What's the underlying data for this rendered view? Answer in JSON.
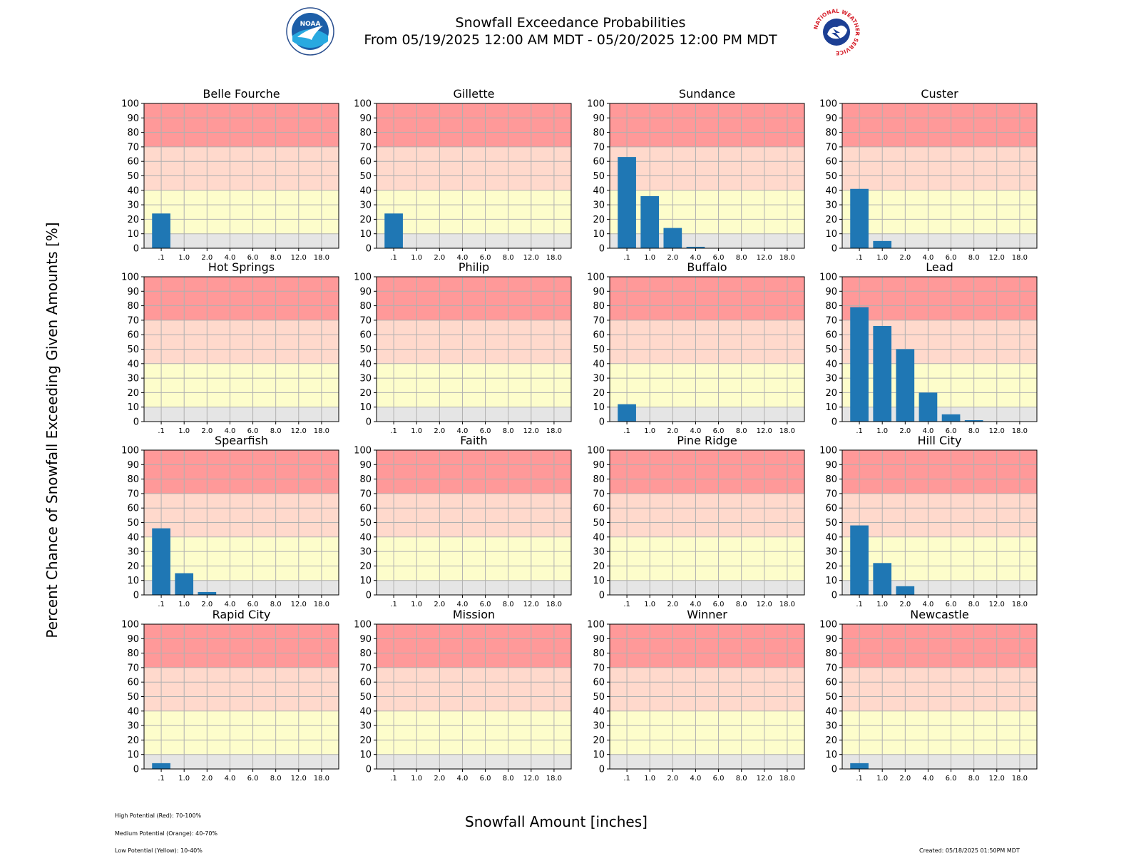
{
  "header": {
    "title_line1": "Snowfall Exceedance Probabilities",
    "title_line2": "From 05/19/2025 12:00 AM MDT - 05/20/2025 12:00 PM MDT"
  },
  "logos": {
    "left": "noaa-logo",
    "right": "nws-logo",
    "noaa_text": "NOAA",
    "nws_text": "NATIONAL WEATHER SERVICE"
  },
  "axes": {
    "ylabel": "Percent Chance of Snowfall Exceeding Given Amounts [%]",
    "xlabel": "Snowfall Amount [inches]"
  },
  "legend": {
    "high": "High Potential (Red): 70-100%",
    "medium": "Medium Potential (Orange): 40-70%",
    "low": "Low Potential (Yellow): 10-40%"
  },
  "footer": {
    "created": "Created: 05/18/2025 01:50PM MDT"
  },
  "colors": {
    "bar": "#1f77b4",
    "high": "#ff9999",
    "medium": "#ffd9cc",
    "low": "#fdfdcb",
    "none": "#e5e5e5",
    "grid": "#b0b0b0"
  },
  "chart_data": {
    "type": "bar",
    "layout": "4x4 small multiples",
    "grid": true,
    "ylim": [
      0,
      100
    ],
    "yticks": [
      0,
      10,
      20,
      30,
      40,
      50,
      60,
      70,
      80,
      90,
      100
    ],
    "categories": [
      ".1",
      "1.0",
      "2.0",
      "4.0",
      "6.0",
      "8.0",
      "12.0",
      "18.0"
    ],
    "bands": [
      {
        "from": 0,
        "to": 10,
        "color": "#e5e5e5"
      },
      {
        "from": 10,
        "to": 40,
        "color": "#fdfdcb"
      },
      {
        "from": 40,
        "to": 70,
        "color": "#ffd9cc"
      },
      {
        "from": 70,
        "to": 100,
        "color": "#ff9999"
      }
    ],
    "panels": [
      {
        "title": "Belle Fourche",
        "values": [
          24,
          0,
          0,
          0,
          0,
          0,
          0,
          0
        ]
      },
      {
        "title": "Gillette",
        "values": [
          24,
          0,
          0,
          0,
          0,
          0,
          0,
          0
        ]
      },
      {
        "title": "Sundance",
        "values": [
          63,
          36,
          14,
          1,
          0,
          0,
          0,
          0
        ]
      },
      {
        "title": "Custer",
        "values": [
          41,
          5,
          0,
          0,
          0,
          0,
          0,
          0
        ]
      },
      {
        "title": "Hot Springs",
        "values": [
          0,
          0,
          0,
          0,
          0,
          0,
          0,
          0
        ]
      },
      {
        "title": "Philip",
        "values": [
          0,
          0,
          0,
          0,
          0,
          0,
          0,
          0
        ]
      },
      {
        "title": "Buffalo",
        "values": [
          12,
          0,
          0,
          0,
          0,
          0,
          0,
          0
        ]
      },
      {
        "title": "Lead",
        "values": [
          79,
          66,
          50,
          20,
          5,
          1,
          0,
          0
        ]
      },
      {
        "title": "Spearfish",
        "values": [
          46,
          15,
          2,
          0,
          0,
          0,
          0,
          0
        ]
      },
      {
        "title": "Faith",
        "values": [
          0,
          0,
          0,
          0,
          0,
          0,
          0,
          0
        ]
      },
      {
        "title": "Pine Ridge",
        "values": [
          0,
          0,
          0,
          0,
          0,
          0,
          0,
          0
        ]
      },
      {
        "title": "Hill City",
        "values": [
          48,
          22,
          6,
          0,
          0,
          0,
          0,
          0
        ]
      },
      {
        "title": "Rapid City",
        "values": [
          4,
          0,
          0,
          0,
          0,
          0,
          0,
          0
        ]
      },
      {
        "title": "Mission",
        "values": [
          0,
          0,
          0,
          0,
          0,
          0,
          0,
          0
        ]
      },
      {
        "title": "Winner",
        "values": [
          0,
          0,
          0,
          0,
          0,
          0,
          0,
          0
        ]
      },
      {
        "title": "Newcastle",
        "values": [
          4,
          0,
          0,
          0,
          0,
          0,
          0,
          0
        ]
      }
    ]
  }
}
